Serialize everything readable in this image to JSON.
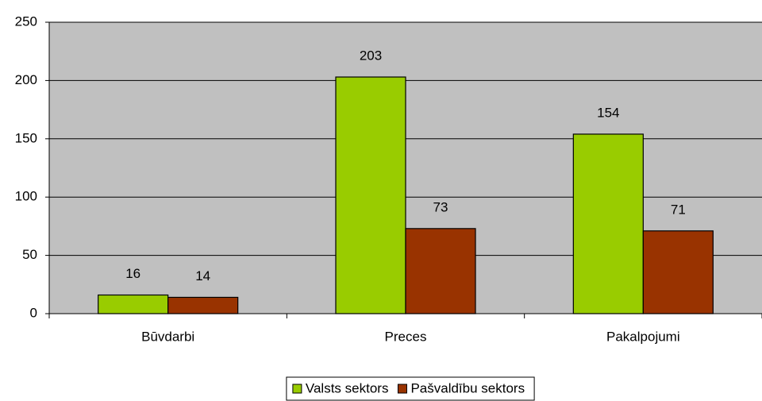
{
  "chart_data": {
    "type": "bar",
    "categories": [
      "Būvdarbi",
      "Preces",
      "Pakalpojumi"
    ],
    "series": [
      {
        "name": "Valsts sektors",
        "color": "#99cc00",
        "values": [
          16,
          203,
          154
        ]
      },
      {
        "name": "Pašvaldību sektors",
        "color": "#993300",
        "values": [
          14,
          73,
          71
        ]
      }
    ],
    "ylim": [
      0,
      250
    ],
    "yticks": [
      0,
      50,
      100,
      150,
      200,
      250
    ],
    "grid": true,
    "plot_background": "#c0c0c0",
    "legend": "bottom"
  }
}
